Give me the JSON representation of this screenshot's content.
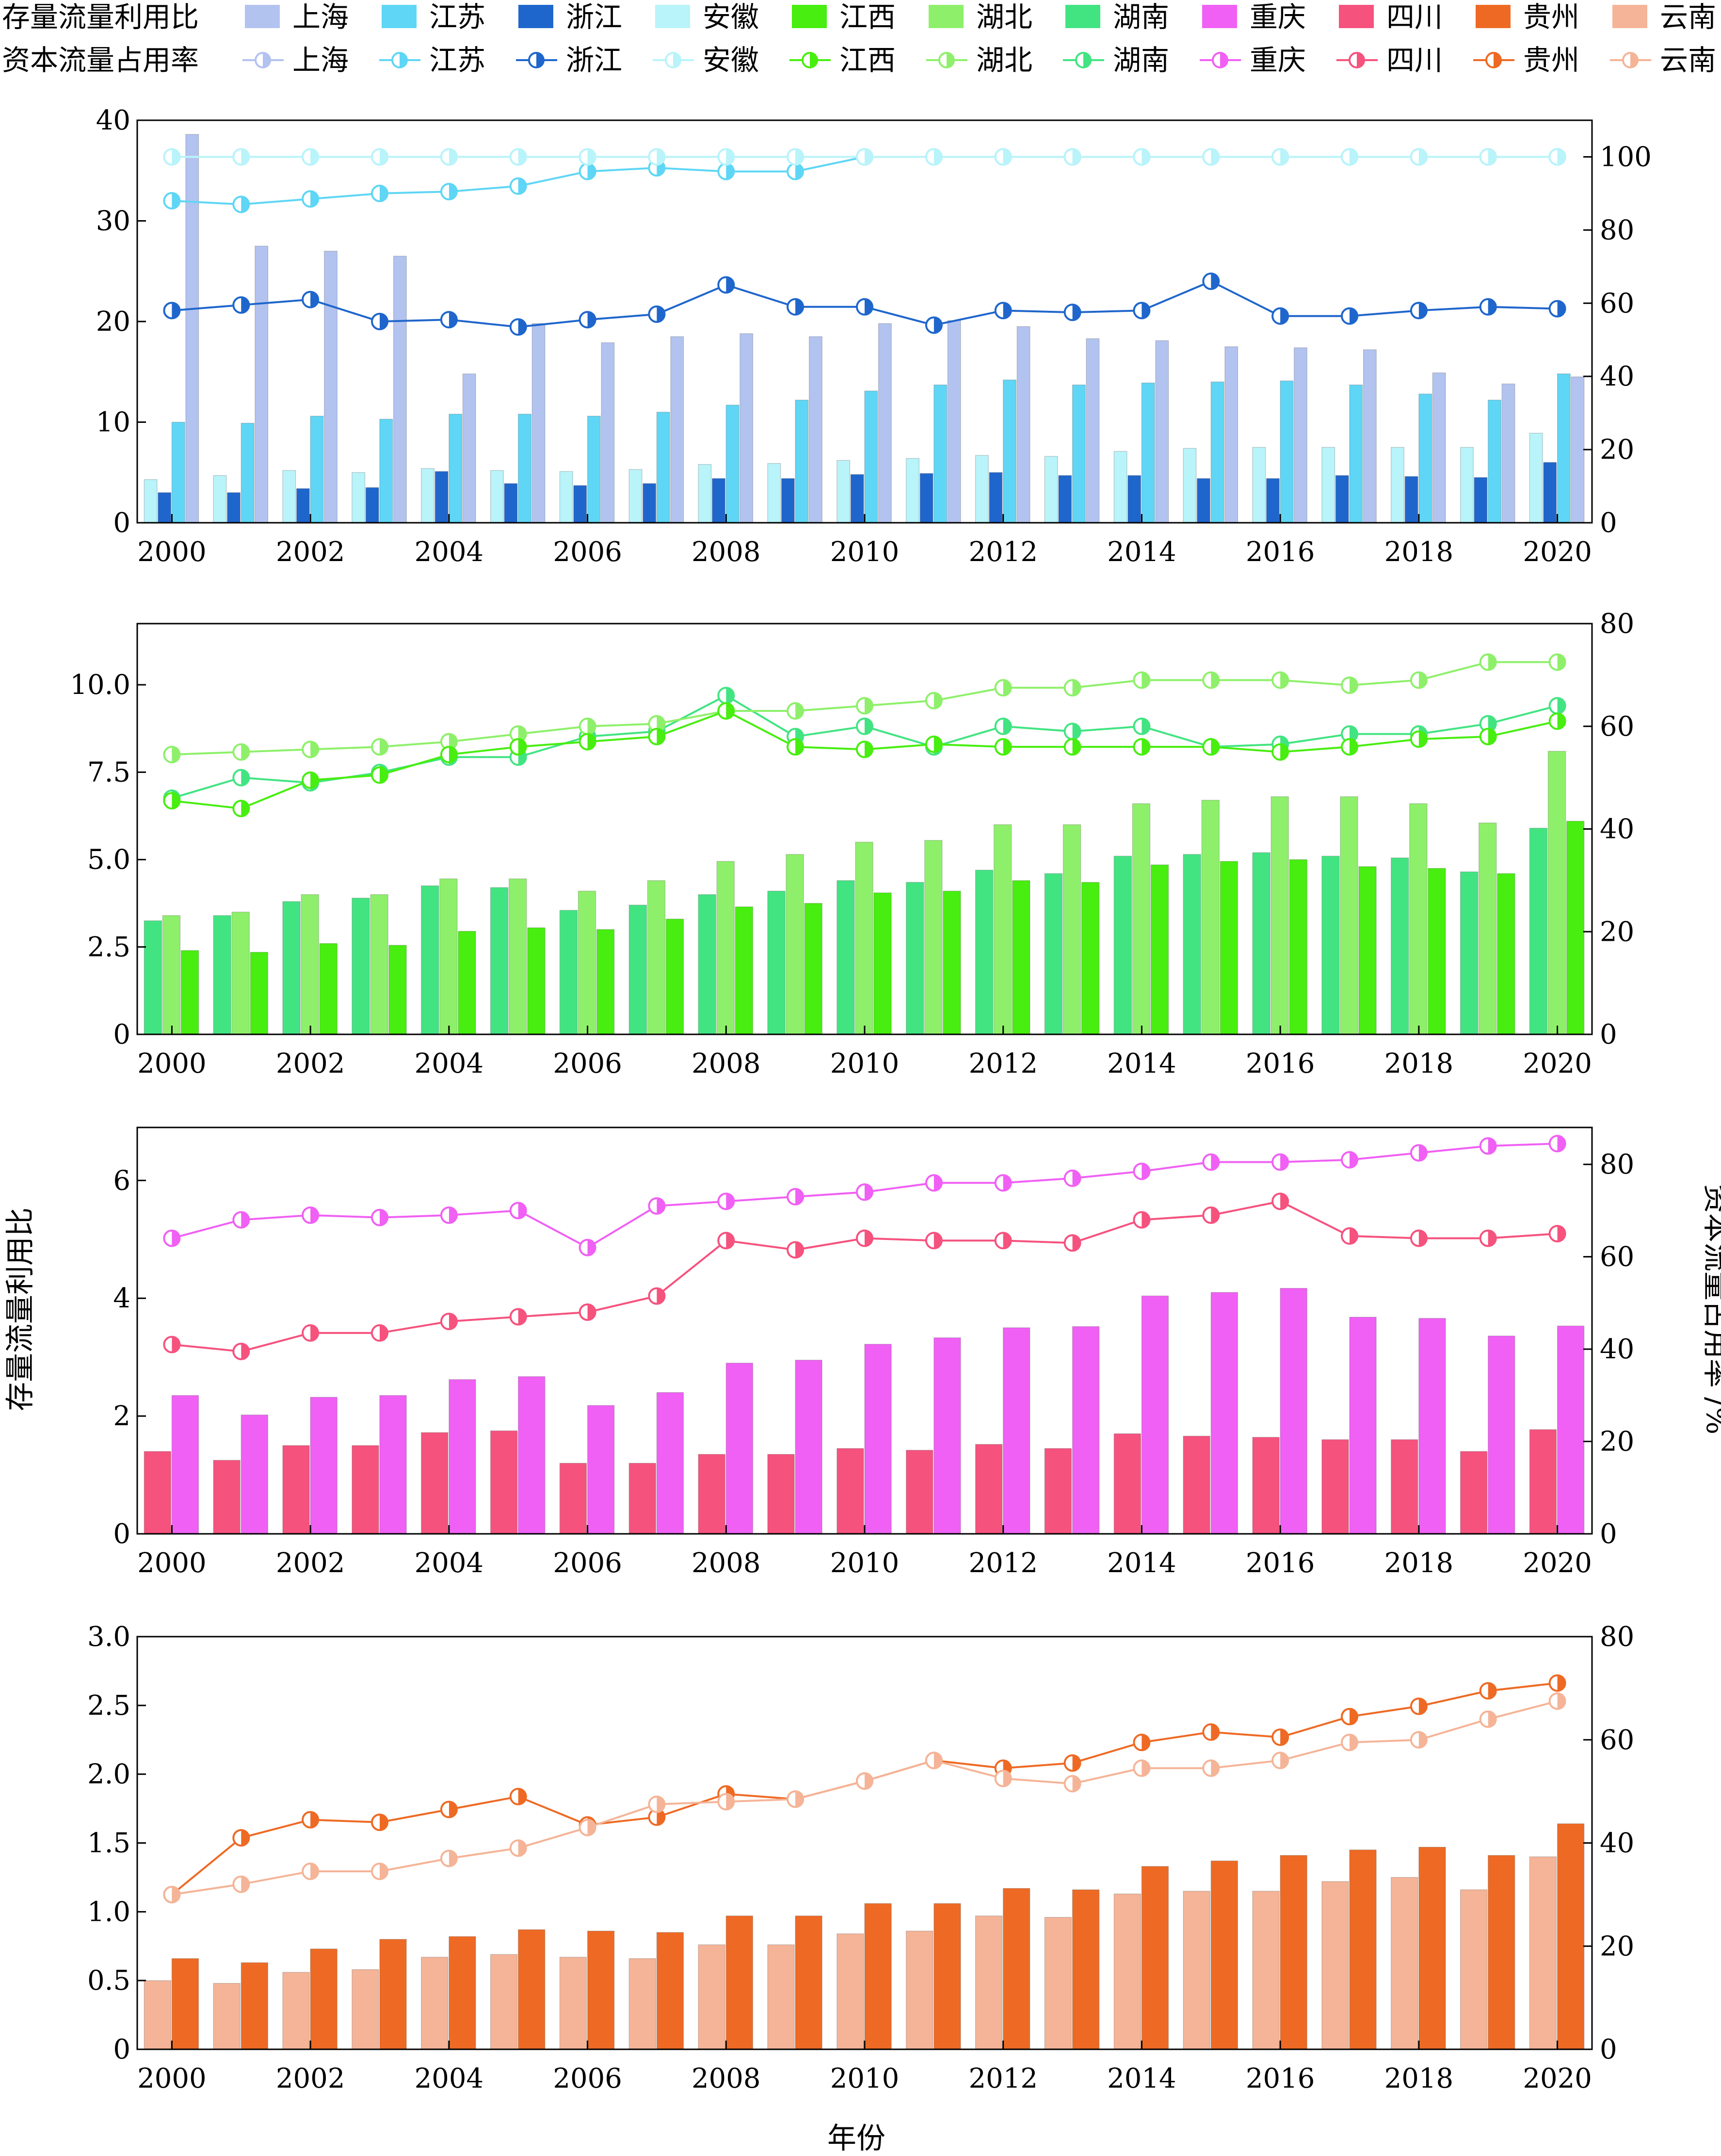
{
  "legend": {
    "bar_title": "存量流量利用比",
    "line_title": "资本流量占用率",
    "provinces": [
      "上海",
      "江苏",
      "浙江",
      "安徽",
      "江西",
      "湖北",
      "湖南",
      "重庆",
      "四川",
      "贵州",
      "云南"
    ],
    "colors": {
      "上海": "#b3c3f0",
      "江苏": "#5fd6f5",
      "浙江": "#1f66cc",
      "安徽": "#b8f4fa",
      "江西": "#47ee0f",
      "湖北": "#8ef06a",
      "湖南": "#42e482",
      "重庆": "#f060f4",
      "四川": "#f6527e",
      "贵州": "#ee6a24",
      "云南": "#f5b497"
    }
  },
  "axis_labels": {
    "left": "存量流量利用比",
    "right": "资本流量占用率 /%",
    "x": "年份"
  },
  "chart_data": [
    {
      "type": "bar",
      "years": [
        2000,
        2001,
        2002,
        2003,
        2004,
        2005,
        2006,
        2007,
        2008,
        2009,
        2010,
        2011,
        2012,
        2013,
        2014,
        2015,
        2016,
        2017,
        2018,
        2019,
        2020
      ],
      "x_ticks": [
        "2000",
        "2002",
        "2004",
        "2006",
        "2008",
        "2010",
        "2012",
        "2014",
        "2016",
        "2018",
        "2020"
      ],
      "ylim_left": [
        0,
        40
      ],
      "yticks_left": [
        "0",
        "10",
        "20",
        "30",
        "40"
      ],
      "ylim_right": [
        0,
        110
      ],
      "yticks_right": [
        "0",
        "20",
        "40",
        "60",
        "80",
        "100"
      ],
      "bar_series": [
        {
          "name": "安徽",
          "values": [
            4.3,
            4.7,
            5.2,
            5.0,
            5.4,
            5.2,
            5.1,
            5.3,
            5.8,
            5.9,
            6.2,
            6.4,
            6.7,
            6.6,
            7.1,
            7.4,
            7.5,
            7.5,
            7.5,
            7.5,
            8.9
          ]
        },
        {
          "name": "浙江",
          "values": [
            3.0,
            3.0,
            3.4,
            3.5,
            5.1,
            3.9,
            3.7,
            3.9,
            4.4,
            4.4,
            4.8,
            4.9,
            5.0,
            4.7,
            4.7,
            4.4,
            4.4,
            4.7,
            4.6,
            4.5,
            6.0
          ]
        },
        {
          "name": "江苏",
          "values": [
            10.0,
            9.9,
            10.6,
            10.3,
            10.8,
            10.8,
            10.6,
            11.0,
            11.7,
            12.2,
            13.1,
            13.7,
            14.2,
            13.7,
            13.9,
            14.0,
            14.1,
            13.7,
            12.8,
            12.2,
            14.8
          ]
        },
        {
          "name": "上海",
          "values": [
            38.6,
            27.5,
            27.0,
            26.5,
            14.8,
            19.8,
            17.9,
            18.5,
            18.8,
            18.5,
            19.8,
            20.1,
            19.5,
            18.3,
            18.1,
            17.5,
            17.4,
            17.2,
            14.9,
            13.8,
            14.5
          ]
        }
      ],
      "line_series": [
        {
          "name": "上海",
          "values": [
            100,
            100,
            100,
            100,
            100,
            100,
            100,
            100,
            100,
            100,
            100,
            100,
            100,
            100,
            100,
            100,
            100,
            100,
            100,
            100,
            100
          ]
        },
        {
          "name": "江苏",
          "values": [
            88,
            87,
            88.5,
            90,
            90.5,
            92,
            96,
            97,
            96,
            96,
            100,
            100,
            100,
            100,
            100,
            100,
            100,
            100,
            100,
            100,
            100
          ]
        },
        {
          "name": "浙江",
          "values": [
            58,
            59.5,
            61,
            55,
            55.5,
            53.5,
            55.5,
            57,
            65,
            59,
            59,
            54,
            58,
            57.5,
            58,
            66,
            56.5,
            56.5,
            58,
            59,
            58.5
          ]
        },
        {
          "name": "安徽",
          "values": [
            100,
            100,
            100,
            100,
            100,
            100,
            100,
            100,
            100,
            100,
            100,
            100,
            100,
            100,
            100,
            100,
            100,
            100,
            100,
            100,
            100
          ]
        }
      ]
    },
    {
      "type": "bar",
      "years": [
        2000,
        2001,
        2002,
        2003,
        2004,
        2005,
        2006,
        2007,
        2008,
        2009,
        2010,
        2011,
        2012,
        2013,
        2014,
        2015,
        2016,
        2017,
        2018,
        2019,
        2020
      ],
      "x_ticks": [
        "2000",
        "2002",
        "2004",
        "2006",
        "2008",
        "2010",
        "2012",
        "2014",
        "2016",
        "2018",
        "2020"
      ],
      "ylim_left": [
        0,
        11.75
      ],
      "yticks_left": [
        "0",
        "2.5",
        "5.0",
        "7.5",
        "10.0"
      ],
      "ylim_right": [
        0,
        80
      ],
      "yticks_right": [
        "0",
        "20",
        "40",
        "60",
        "80"
      ],
      "bar_series": [
        {
          "name": "湖南",
          "values": [
            3.25,
            3.4,
            3.8,
            3.9,
            4.25,
            4.2,
            3.55,
            3.7,
            4.0,
            4.1,
            4.4,
            4.35,
            4.7,
            4.6,
            5.1,
            5.15,
            5.2,
            5.1,
            5.05,
            4.65,
            5.9
          ]
        },
        {
          "name": "湖北",
          "values": [
            3.4,
            3.5,
            4.0,
            4.0,
            4.45,
            4.45,
            4.1,
            4.4,
            4.95,
            5.15,
            5.5,
            5.55,
            6.0,
            6.0,
            6.6,
            6.7,
            6.8,
            6.8,
            6.6,
            6.05,
            8.1
          ]
        },
        {
          "name": "江西",
          "values": [
            2.4,
            2.35,
            2.6,
            2.55,
            2.95,
            3.05,
            3.0,
            3.3,
            3.65,
            3.75,
            4.05,
            4.1,
            4.4,
            4.35,
            4.85,
            4.95,
            5.0,
            4.8,
            4.75,
            4.6,
            6.1
          ]
        }
      ],
      "line_series": [
        {
          "name": "湖南",
          "values": [
            46,
            50,
            49,
            51,
            54,
            54,
            58,
            59,
            66,
            58,
            60,
            56,
            60,
            59,
            60,
            56,
            56.5,
            58.5,
            58.5,
            60.5,
            64
          ]
        },
        {
          "name": "湖北",
          "values": [
            54.5,
            55,
            55.5,
            56,
            57,
            58.5,
            60,
            60.5,
            63,
            63,
            64,
            65,
            67.5,
            67.5,
            69,
            69,
            69,
            68,
            69,
            72.5,
            72.5
          ]
        },
        {
          "name": "江西",
          "values": [
            45.5,
            44,
            49.5,
            50.5,
            54.5,
            56,
            57,
            58,
            63,
            56,
            55.5,
            56.5,
            56,
            56,
            56,
            56,
            55,
            56,
            57.5,
            58,
            61
          ]
        }
      ]
    },
    {
      "type": "bar",
      "years": [
        2000,
        2001,
        2002,
        2003,
        2004,
        2005,
        2006,
        2007,
        2008,
        2009,
        2010,
        2011,
        2012,
        2013,
        2014,
        2015,
        2016,
        2017,
        2018,
        2019,
        2020
      ],
      "x_ticks": [
        "2000",
        "2002",
        "2004",
        "2006",
        "2008",
        "2010",
        "2012",
        "2014",
        "2016",
        "2018",
        "2020"
      ],
      "ylim_left": [
        0,
        6.9
      ],
      "yticks_left": [
        "0",
        "2",
        "4",
        "6"
      ],
      "ylim_right": [
        0,
        88
      ],
      "yticks_right": [
        "0",
        "20",
        "40",
        "60",
        "80"
      ],
      "bar_series": [
        {
          "name": "四川",
          "values": [
            1.4,
            1.25,
            1.5,
            1.5,
            1.72,
            1.75,
            1.2,
            1.2,
            1.35,
            1.35,
            1.45,
            1.42,
            1.52,
            1.45,
            1.7,
            1.66,
            1.64,
            1.6,
            1.6,
            1.4,
            1.77
          ]
        },
        {
          "name": "重庆",
          "values": [
            2.35,
            2.02,
            2.32,
            2.35,
            2.62,
            2.67,
            2.18,
            2.4,
            2.9,
            2.95,
            3.22,
            3.33,
            3.5,
            3.52,
            4.04,
            4.1,
            4.17,
            3.68,
            3.66,
            3.36,
            3.53
          ]
        }
      ],
      "line_series": [
        {
          "name": "重庆",
          "values": [
            64,
            68,
            69,
            68.5,
            69,
            70,
            62,
            71,
            72,
            73,
            74,
            76,
            76,
            77,
            78.5,
            80.5,
            80.5,
            81,
            82.5,
            84,
            84.5
          ]
        },
        {
          "name": "四川",
          "values": [
            41,
            39.5,
            43.5,
            43.5,
            46,
            47,
            48,
            51.5,
            63.5,
            61.5,
            64,
            63.5,
            63.5,
            63,
            68,
            69,
            72,
            64.5,
            64,
            64,
            65
          ]
        }
      ]
    },
    {
      "type": "bar",
      "years": [
        2000,
        2001,
        2002,
        2003,
        2004,
        2005,
        2006,
        2007,
        2008,
        2009,
        2010,
        2011,
        2012,
        2013,
        2014,
        2015,
        2016,
        2017,
        2018,
        2019,
        2020
      ],
      "x_ticks": [
        "2000",
        "2002",
        "2004",
        "2006",
        "2008",
        "2010",
        "2012",
        "2014",
        "2016",
        "2018",
        "2020"
      ],
      "ylim_left": [
        0,
        3.0
      ],
      "yticks_left": [
        "0",
        "0.5",
        "1.0",
        "1.5",
        "2.0",
        "2.5",
        "3.0"
      ],
      "ylim_right": [
        0,
        80
      ],
      "yticks_right": [
        "0",
        "20",
        "40",
        "60",
        "80"
      ],
      "bar_series": [
        {
          "name": "云南",
          "values": [
            0.5,
            0.48,
            0.56,
            0.58,
            0.67,
            0.69,
            0.67,
            0.66,
            0.76,
            0.76,
            0.84,
            0.86,
            0.97,
            0.96,
            1.13,
            1.15,
            1.15,
            1.22,
            1.25,
            1.16,
            1.4
          ]
        },
        {
          "name": "贵州",
          "values": [
            0.66,
            0.63,
            0.73,
            0.8,
            0.82,
            0.87,
            0.86,
            0.85,
            0.97,
            0.97,
            1.06,
            1.06,
            1.17,
            1.16,
            1.33,
            1.37,
            1.41,
            1.45,
            1.47,
            1.41,
            1.64
          ]
        }
      ],
      "line_series": [
        {
          "name": "贵州",
          "values": [
            30,
            41,
            44.5,
            44,
            46.5,
            49,
            43.5,
            45,
            49.5,
            48.5,
            52,
            56,
            54.5,
            55.5,
            59.5,
            61.5,
            60.5,
            64.5,
            66.5,
            69.5,
            71
          ]
        },
        {
          "name": "云南",
          "values": [
            30,
            32,
            34.5,
            34.5,
            37,
            39,
            43,
            47.5,
            48,
            48.5,
            52,
            56,
            52.5,
            51.5,
            54.5,
            54.5,
            56,
            59.5,
            60,
            64,
            67.5
          ]
        }
      ]
    }
  ]
}
